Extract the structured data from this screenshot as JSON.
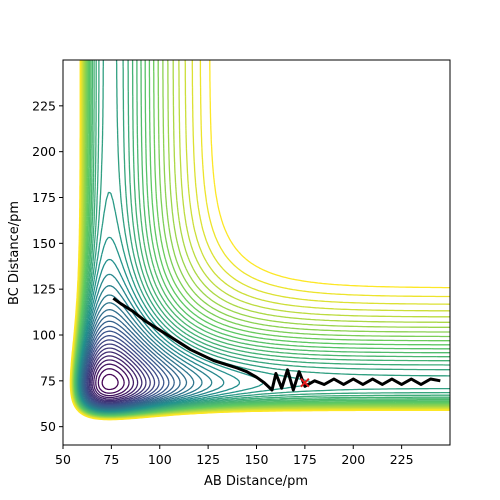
{
  "chart_data": {
    "type": "contour",
    "title": "",
    "xlabel": "AB Distance/pm",
    "ylabel": "BC Distance/pm",
    "xlim": [
      50,
      250
    ],
    "ylim": [
      40,
      250
    ],
    "x_ticks": [
      50,
      75,
      100,
      125,
      150,
      175,
      200,
      225
    ],
    "y_ticks": [
      50,
      75,
      100,
      125,
      150,
      175,
      200,
      225
    ],
    "colormap": [
      "#440154",
      "#3b528b",
      "#21918c",
      "#5ec962",
      "#fde725"
    ],
    "surface": {
      "description_free": true,
      "well_depth": 1.0,
      "equilibrium_distance": 74,
      "levels": 40
    },
    "trajectory": {
      "color": "#000000",
      "start": [
        76,
        120
      ],
      "points": [
        [
          76,
          120
        ],
        [
          80,
          117
        ],
        [
          86,
          113
        ],
        [
          92,
          108
        ],
        [
          98,
          104
        ],
        [
          104,
          100
        ],
        [
          110,
          96
        ],
        [
          116,
          92
        ],
        [
          122,
          89
        ],
        [
          128,
          86
        ],
        [
          134,
          84
        ],
        [
          140,
          82
        ],
        [
          145,
          80
        ],
        [
          150,
          77
        ],
        [
          154,
          74
        ],
        [
          158,
          70
        ],
        [
          160,
          79
        ],
        [
          163,
          71
        ],
        [
          166,
          81
        ],
        [
          169,
          70
        ],
        [
          172,
          80
        ],
        [
          175,
          72
        ],
        [
          180,
          75
        ],
        [
          185,
          73
        ],
        [
          190,
          76
        ],
        [
          195,
          73
        ],
        [
          200,
          76
        ],
        [
          205,
          73
        ],
        [
          210,
          76
        ],
        [
          215,
          73
        ],
        [
          220,
          76
        ],
        [
          225,
          73
        ],
        [
          230,
          76
        ],
        [
          235,
          73
        ],
        [
          240,
          76
        ],
        [
          245,
          75
        ]
      ]
    },
    "marker": {
      "symbol": "x",
      "color": "#e41a1c",
      "point": [
        175,
        74
      ]
    }
  }
}
